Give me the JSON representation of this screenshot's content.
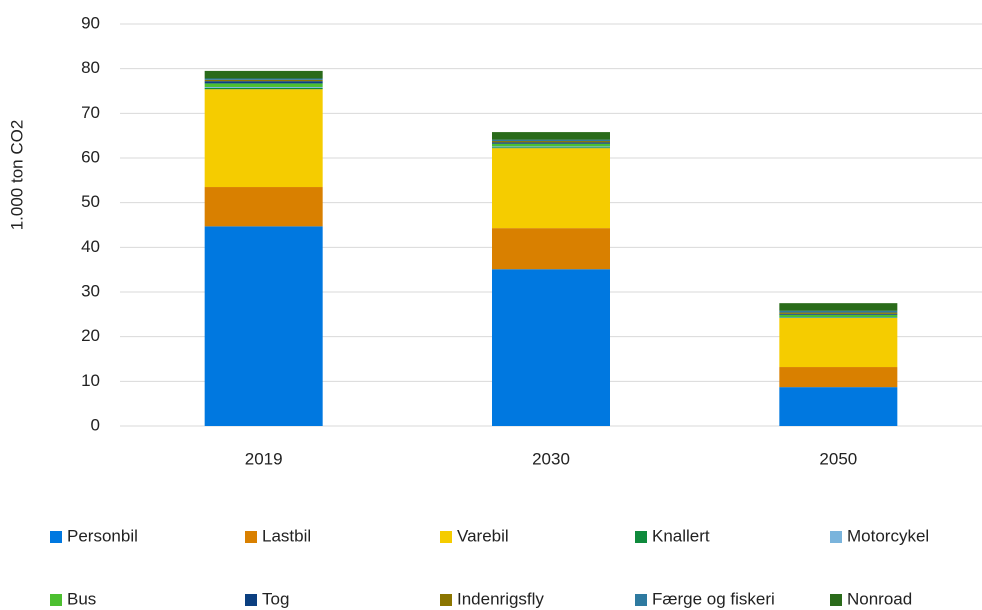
{
  "chart_data": {
    "type": "stacked_bar",
    "y_label": "1.000 ton CO2",
    "categories": [
      "2019",
      "2030",
      "2050"
    ],
    "series": [
      {
        "name": "Personbil",
        "color": "#0078e0",
        "values": [
          44.7,
          35.1,
          8.7
        ]
      },
      {
        "name": "Lastbil",
        "color": "#d98000",
        "values": [
          8.8,
          9.2,
          4.5
        ]
      },
      {
        "name": "Varebil",
        "color": "#f5cc00",
        "values": [
          21.9,
          17.9,
          11.0
        ]
      },
      {
        "name": "Knallert",
        "color": "#0f8a3c",
        "values": [
          0.3,
          0.2,
          0.1
        ]
      },
      {
        "name": "Motorcykel",
        "color": "#7ab4dc",
        "values": [
          0.2,
          0.2,
          0.1
        ]
      },
      {
        "name": "Bus",
        "color": "#4cbf30",
        "values": [
          0.8,
          0.6,
          0.5
        ]
      },
      {
        "name": "Tog",
        "color": "#0b3f80",
        "values": [
          0.5,
          0.3,
          0.2
        ]
      },
      {
        "name": "Indenrigsfly",
        "color": "#8b7500",
        "values": [
          0.3,
          0.3,
          0.3
        ]
      },
      {
        "name": "Færge og fiskeri",
        "color": "#2e7aa0",
        "values": [
          0.3,
          0.3,
          0.4
        ]
      },
      {
        "name": "Nonroad",
        "color": "#2a6b1a",
        "values": [
          1.7,
          1.7,
          1.7
        ]
      }
    ],
    "ylim": [
      0,
      90
    ],
    "yticks": [
      0,
      10,
      20,
      30,
      40,
      50,
      60,
      70,
      80,
      90
    ],
    "grid": true,
    "legend": "bottom"
  }
}
